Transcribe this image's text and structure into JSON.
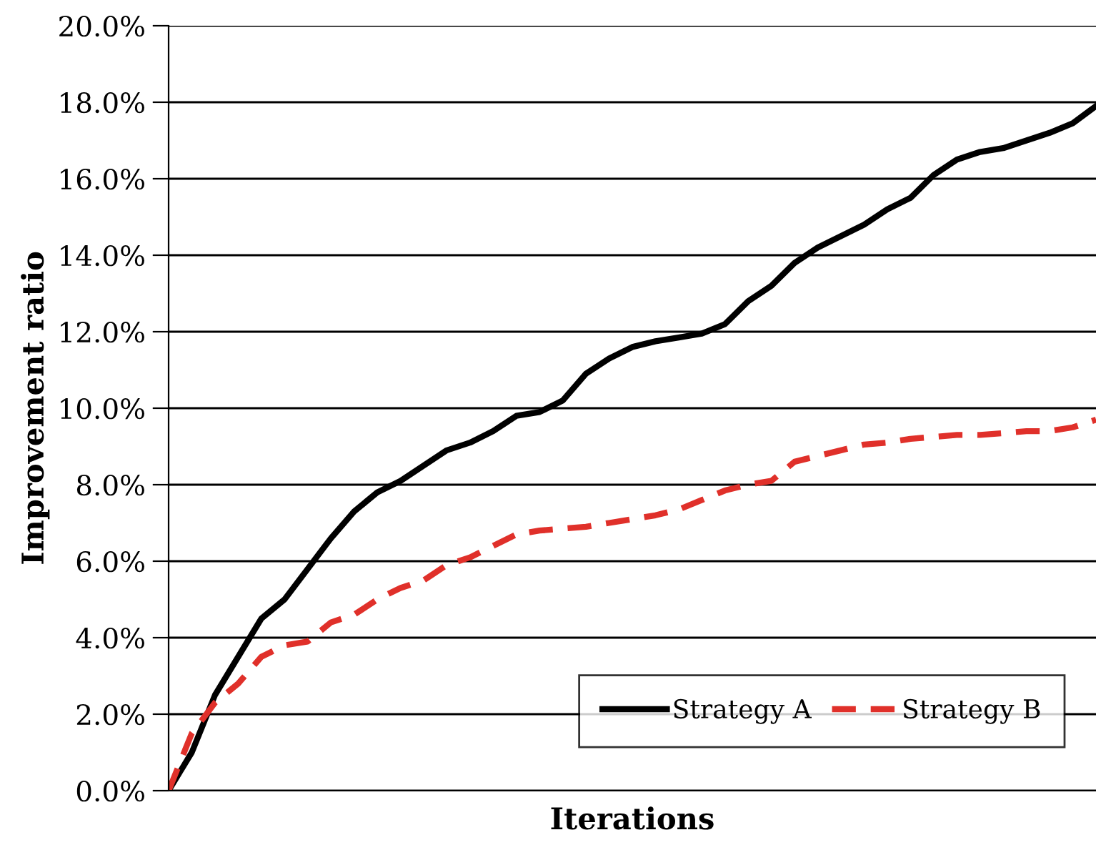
{
  "chart_data": {
    "type": "line",
    "xlabel": "Iterations",
    "ylabel": "Improvement ratio",
    "categories": [
      null,
      null,
      null,
      null,
      null,
      null,
      null,
      null,
      null,
      null,
      null,
      null,
      null,
      null,
      null,
      null,
      null,
      null,
      null,
      null,
      null,
      null,
      null,
      null,
      null,
      null,
      null,
      null,
      null,
      null,
      null,
      null,
      null,
      null,
      null,
      null,
      null,
      null,
      null,
      null,
      null
    ],
    "series": [
      {
        "name": "Strategy A",
        "color": "#000000",
        "line_style": "solid",
        "values": [
          0,
          1.0,
          2.5,
          3.5,
          4.5,
          5.0,
          5.8,
          6.6,
          7.3,
          7.8,
          8.1,
          8.5,
          8.9,
          9.1,
          9.4,
          9.8,
          9.9,
          10.2,
          10.9,
          11.3,
          11.6,
          11.75,
          11.85,
          11.95,
          12.2,
          12.8,
          13.2,
          13.8,
          14.2,
          14.5,
          14.8,
          15.2,
          15.5,
          16.1,
          16.5,
          16.7,
          16.8,
          17.0,
          17.2,
          17.45,
          17.9
        ]
      },
      {
        "name": "Strategy B",
        "color": "#e0302a",
        "line_style": "dashed",
        "values": [
          0,
          1.5,
          2.3,
          2.8,
          3.5,
          3.8,
          3.9,
          4.4,
          4.6,
          5.0,
          5.3,
          5.5,
          5.9,
          6.1,
          6.4,
          6.7,
          6.8,
          6.85,
          6.9,
          7.0,
          7.1,
          7.2,
          7.35,
          7.6,
          7.85,
          8.0,
          8.1,
          8.6,
          8.75,
          8.9,
          9.05,
          9.1,
          9.2,
          9.25,
          9.3,
          9.3,
          9.35,
          9.4,
          9.4,
          9.5,
          9.7
        ]
      }
    ],
    "ylim": [
      0,
      20
    ],
    "yticks": [
      {
        "value": 0,
        "label": "0.0%"
      },
      {
        "value": 2,
        "label": "2.0%"
      },
      {
        "value": 4,
        "label": "4.0%"
      },
      {
        "value": 6,
        "label": "6.0%"
      },
      {
        "value": 8,
        "label": "8.0%"
      },
      {
        "value": 10,
        "label": "10.0%"
      },
      {
        "value": 12,
        "label": "12.0%"
      },
      {
        "value": 14,
        "label": "14.0%"
      },
      {
        "value": 16,
        "label": "16.0%"
      },
      {
        "value": 18,
        "label": "18.0%"
      },
      {
        "value": 20,
        "label": "20.0%"
      }
    ],
    "grid": "y",
    "legend": "bottom right",
    "tick_labels": "y",
    "marker": "none"
  }
}
